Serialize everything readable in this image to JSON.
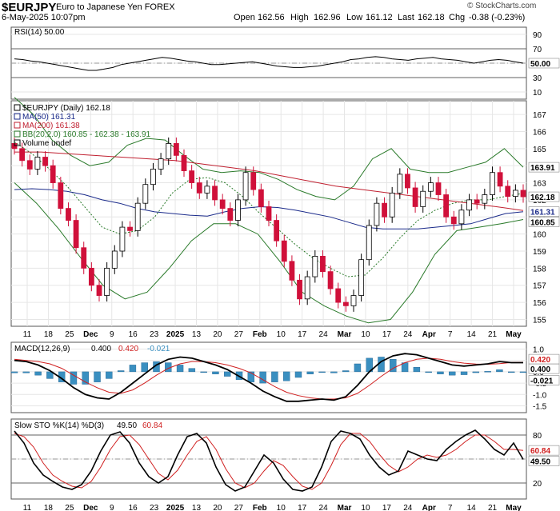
{
  "header": {
    "symbol": "$EURJPY",
    "description": "Euro to Japanese Yen FOREX",
    "date": "6-May-2025 10:07pm",
    "watermark": "© StockCharts.com",
    "open_label": "Open",
    "open": "162.56",
    "high_label": "High",
    "high": "162.96",
    "low_label": "Low",
    "low": "161.12",
    "last_label": "Last",
    "last": "162.18",
    "chg_label": "Chg",
    "chg": "-0.38 (-0.23%)"
  },
  "colors": {
    "up": "#ffffff",
    "down": "#d0103a",
    "ma50": "#1a2a8a",
    "ma200": "#c02030",
    "bb": "#2a7a2a",
    "macd_line": "#000000",
    "signal": "#d02020",
    "hist": "#3a8fc0",
    "stok": "#000000",
    "stod": "#d02020",
    "grid": "#e6e6e6",
    "last_badge": "#e8b800"
  },
  "chart_data": [
    {
      "type": "line",
      "panel": "rsi",
      "legend": "RSI(14) 50.00",
      "ylim": [
        0,
        100
      ],
      "y_ticks": [
        "90",
        "70",
        "50",
        "30",
        "10"
      ],
      "last_label": "50.00",
      "values": [
        56,
        55,
        53,
        52,
        50,
        48,
        46,
        44,
        42,
        40,
        40,
        42,
        44,
        48,
        50,
        52,
        54,
        56,
        58,
        57,
        55,
        53,
        52,
        50,
        48,
        48,
        49,
        50,
        51,
        52,
        50,
        48,
        46,
        45,
        44,
        44,
        45,
        46,
        48,
        50,
        52,
        55,
        56,
        58,
        59,
        58,
        56,
        55,
        54,
        56,
        57,
        58,
        56,
        55,
        54,
        52,
        50,
        52,
        54,
        55,
        54,
        52,
        50
      ]
    },
    {
      "type": "line",
      "panel": "price",
      "legend": [
        "$EURJPY (Daily) 162.18",
        "MA(50) 161.31",
        "MA(200) 161.38",
        "BB(20,2.0) 160.85 - 162.38 - 163.91",
        "Volume undef"
      ],
      "ylim": [
        154.6,
        167.8
      ],
      "y_ticks": [
        "167",
        "166",
        "165",
        "164",
        "163",
        "162",
        "161",
        "160",
        "159",
        "158",
        "157",
        "156",
        "155"
      ],
      "x_ticks": [
        "11",
        "18",
        "25",
        "Dec",
        "9",
        "16",
        "23",
        "2025",
        "13",
        "20",
        "27",
        "Feb",
        "10",
        "17",
        "24",
        "Mar",
        "10",
        "17",
        "24",
        "Apr",
        "7",
        "14",
        "21",
        "May"
      ],
      "price_labels": [
        "163.91",
        "162.18",
        "161.31",
        "160.85"
      ],
      "close": [
        165.0,
        164.3,
        163.8,
        164.5,
        164.0,
        163.0,
        161.5,
        160.8,
        159.2,
        158.0,
        157.0,
        156.4,
        158.0,
        159.0,
        160.4,
        160.2,
        161.8,
        162.9,
        163.8,
        164.4,
        165.3,
        164.6,
        163.7,
        163.0,
        162.4,
        162.8,
        162.0,
        161.5,
        160.8,
        162.0,
        163.6,
        162.6,
        161.6,
        160.8,
        159.6,
        158.4,
        157.3,
        156.2,
        157.5,
        158.7,
        157.8,
        156.8,
        156.0,
        155.8,
        156.4,
        158.5,
        160.5,
        161.8,
        161.0,
        162.4,
        163.5,
        162.7,
        161.6,
        162.5,
        163.0,
        162.3,
        161.0,
        160.6,
        161.4,
        162.0,
        161.8,
        162.3,
        163.6,
        162.8,
        162.2,
        162.56,
        162.18
      ],
      "ma50": [
        162.6,
        162.65,
        162.6,
        162.5,
        162.3,
        162.0,
        161.8,
        161.5,
        161.3,
        161.2,
        161.1,
        161.05,
        161.3,
        161.5,
        161.6,
        161.55,
        161.4,
        161.2,
        161.0,
        160.7,
        160.4,
        160.3,
        160.3,
        160.3,
        160.4,
        160.5,
        160.6,
        160.9,
        161.2,
        161.31
      ],
      "ma200": [
        164.8,
        164.8,
        164.7,
        164.6,
        164.5,
        164.4,
        164.3,
        164.1,
        163.9,
        163.7,
        163.4,
        163.1,
        162.8,
        162.6,
        162.4,
        162.2,
        162.0,
        161.8,
        161.6,
        161.38
      ],
      "bb_upper": [
        168.0,
        167.0,
        165.5,
        164.6,
        164.0,
        164.2,
        165.2,
        165.6,
        165.5,
        164.6,
        163.8,
        163.6,
        163.7,
        163.6,
        163.2,
        162.6,
        162.2,
        162.0,
        162.8,
        164.4,
        165.0,
        163.8,
        163.6,
        163.6,
        163.9,
        164.2,
        165.0,
        163.91
      ],
      "bb_middle": [
        165.4,
        164.7,
        163.8,
        162.8,
        161.6,
        160.4,
        160.0,
        160.2,
        161.0,
        162.4,
        163.2,
        163.3,
        163.0,
        162.2,
        161.2,
        160.3,
        159.4,
        158.6,
        158.0,
        157.5,
        157.6,
        158.6,
        159.8,
        160.8,
        161.4,
        161.8,
        162.0,
        162.0,
        162.2,
        162.38
      ],
      "bb_lower": [
        163.0,
        161.8,
        160.3,
        158.6,
        157.0,
        156.2,
        156.6,
        158.0,
        159.6,
        160.6,
        160.6,
        160.0,
        158.4,
        156.6,
        155.8,
        155.2,
        154.8,
        155.0,
        156.6,
        158.8,
        160.2,
        160.4,
        160.6,
        160.85
      ]
    },
    {
      "type": "line",
      "panel": "macd",
      "legend_prefix": "MACD(12,26,9)",
      "legend_macd": "0.400",
      "legend_signal": "0.420",
      "legend_hist": "-0.021",
      "ylim": [
        -1.8,
        1.3
      ],
      "y_ticks": [
        "1.0",
        "0.5",
        "0.0",
        "-0.5",
        "-1.0",
        "-1.5"
      ],
      "price_labels": [
        "0.420",
        "0.400",
        "-0.021"
      ],
      "macd": [
        0.5,
        0.45,
        0.3,
        0.05,
        -0.3,
        -0.7,
        -1.0,
        -1.15,
        -1.2,
        -0.9,
        -0.5,
        -0.1,
        0.3,
        0.55,
        0.65,
        0.6,
        0.45,
        0.3,
        0.1,
        -0.2,
        -0.5,
        -0.85,
        -1.1,
        -1.3,
        -1.3,
        -1.25,
        -1.2,
        -1.25,
        -1.1,
        -0.6,
        0.0,
        0.45,
        0.7,
        0.8,
        0.75,
        0.6,
        0.45,
        0.3,
        0.25,
        0.3,
        0.35,
        0.45,
        0.4,
        0.4
      ],
      "signal": [
        0.55,
        0.5,
        0.45,
        0.35,
        0.15,
        -0.15,
        -0.45,
        -0.7,
        -0.9,
        -0.95,
        -0.8,
        -0.5,
        -0.15,
        0.15,
        0.35,
        0.45,
        0.45,
        0.4,
        0.3,
        0.15,
        -0.05,
        -0.35,
        -0.65,
        -0.9,
        -1.05,
        -1.15,
        -1.2,
        -1.2,
        -1.15,
        -0.95,
        -0.6,
        -0.2,
        0.15,
        0.4,
        0.55,
        0.6,
        0.55,
        0.45,
        0.38,
        0.34,
        0.33,
        0.36,
        0.41,
        0.42
      ],
      "histogram": [
        -0.05,
        -0.05,
        -0.15,
        -0.3,
        -0.45,
        -0.55,
        -0.55,
        -0.45,
        -0.3,
        0.05,
        0.3,
        0.4,
        0.45,
        0.4,
        0.3,
        0.15,
        0.0,
        -0.1,
        -0.2,
        -0.35,
        -0.45,
        -0.5,
        -0.45,
        -0.4,
        -0.25,
        -0.1,
        0.0,
        -0.05,
        0.05,
        0.35,
        0.6,
        0.65,
        0.55,
        0.4,
        0.2,
        0.0,
        -0.1,
        -0.15,
        -0.13,
        -0.04,
        0.02,
        0.09,
        -0.01,
        -0.021
      ]
    },
    {
      "type": "line",
      "panel": "stochastic",
      "legend_prefix": "Slow STO %K(14) %D(3)",
      "legend_k": "49.50",
      "legend_d": "60.84",
      "ylim": [
        0,
        100
      ],
      "y_ticks": [
        "80",
        "50",
        "20"
      ],
      "price_labels": [
        "60.84",
        "49.50"
      ],
      "k": [
        85,
        70,
        45,
        30,
        22,
        15,
        12,
        18,
        35,
        60,
        80,
        84,
        70,
        45,
        28,
        20,
        28,
        55,
        78,
        82,
        70,
        40,
        18,
        10,
        15,
        35,
        55,
        45,
        25,
        12,
        10,
        15,
        40,
        72,
        85,
        82,
        75,
        55,
        40,
        30,
        35,
        60,
        55,
        50,
        48,
        62,
        72,
        80,
        86,
        75,
        62,
        55,
        70,
        49.5
      ],
      "d": [
        82,
        78,
        65,
        45,
        30,
        22,
        16,
        14,
        22,
        40,
        62,
        78,
        80,
        68,
        50,
        32,
        24,
        36,
        55,
        72,
        78,
        62,
        38,
        20,
        14,
        20,
        35,
        48,
        42,
        28,
        16,
        12,
        20,
        42,
        68,
        82,
        82,
        72,
        56,
        42,
        34,
        40,
        50,
        55,
        52,
        55,
        62,
        72,
        80,
        80,
        72,
        62,
        62,
        60.84
      ]
    }
  ]
}
